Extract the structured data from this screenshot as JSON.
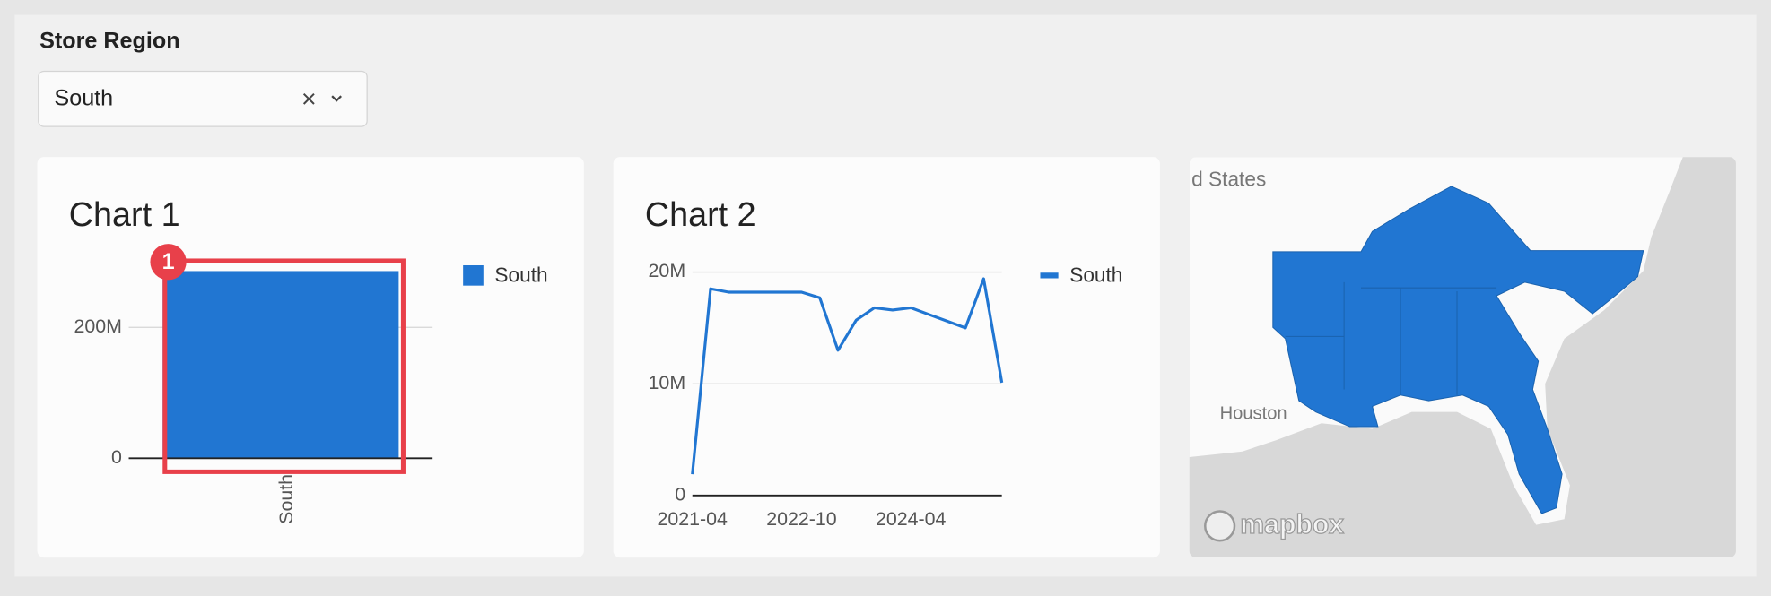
{
  "filter": {
    "label": "Store Region",
    "value": "South"
  },
  "annotation": "1",
  "chart_data": [
    {
      "type": "bar",
      "title": "Chart 1",
      "categories": [
        "South"
      ],
      "series": [
        {
          "name": "South",
          "color": "#2176d2",
          "values": [
            286000000
          ]
        }
      ],
      "ylim": [
        0,
        300000000
      ],
      "yticks": [
        0,
        {
          "value": 200000000,
          "label": "200M"
        }
      ],
      "grid": true,
      "legend": "right"
    },
    {
      "type": "line",
      "title": "Chart 2",
      "x": [
        "2021-04",
        null,
        null,
        null,
        null,
        null,
        "2022-10",
        null,
        null,
        null,
        null,
        null,
        "2024-04",
        null,
        null,
        null,
        null,
        null
      ],
      "series": [
        {
          "name": "South",
          "color": "#2176d2",
          "values": [
            1900000,
            18500000,
            18200000,
            18200000,
            18200000,
            18200000,
            18200000,
            17700000,
            13000000,
            15700000,
            16800000,
            16600000,
            16800000,
            16200000,
            15600000,
            15000000,
            19400000,
            10100000
          ]
        }
      ],
      "ylim": [
        0,
        20000000
      ],
      "yticks": [
        0,
        {
          "value": 10000000,
          "label": "10M"
        },
        {
          "value": 20000000,
          "label": "20M"
        }
      ],
      "grid": true,
      "legend": "right"
    }
  ],
  "map": {
    "labels": [
      "d States",
      "Houston"
    ],
    "attribution": "mapbox"
  }
}
